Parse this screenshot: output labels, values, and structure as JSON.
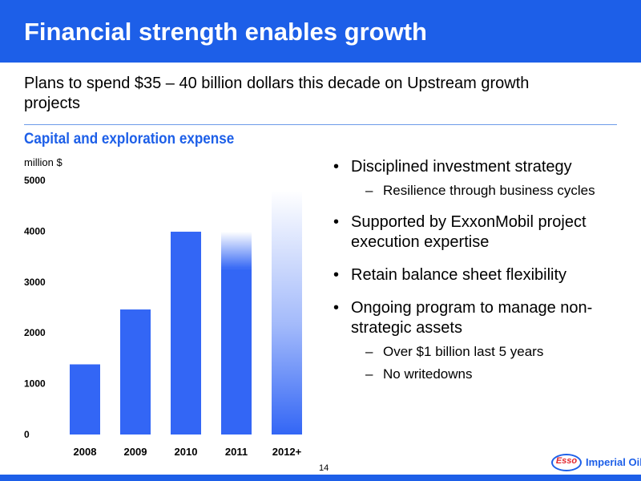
{
  "slide": {
    "title": "Financial strength enables growth",
    "subtitle": "Plans to spend $35 – 40 billion dollars this decade on Upstream growth projects",
    "page_number": "14"
  },
  "colors": {
    "accent": "#1d5fe8",
    "bar": "#3366f5",
    "logo_red": "#e3262c"
  },
  "bullets": [
    {
      "text": "Disciplined investment strategy",
      "sub": [
        "Resilience through business cycles"
      ]
    },
    {
      "text": "Supported by ExxonMobil project execution expertise",
      "sub": []
    },
    {
      "text": "Retain balance sheet flexibility",
      "sub": []
    },
    {
      "text": "Ongoing program to manage non-strategic assets",
      "sub": [
        "Over $1 billion last 5 years",
        "No writedowns"
      ]
    }
  ],
  "logo": {
    "brand": "Esso",
    "company": "Imperial Oil"
  },
  "chart_data": {
    "type": "bar",
    "title": "Capital and exploration expense",
    "ylabel": "million $",
    "categories": [
      "2008",
      "2009",
      "2010",
      "2011",
      "2012+"
    ],
    "values": [
      1380,
      2460,
      3990,
      3990,
      4800
    ],
    "solid_values": [
      1380,
      2460,
      3990,
      3250,
      0
    ],
    "ylim": [
      0,
      5000
    ],
    "yticks": [
      0,
      1000,
      2000,
      3000,
      4000,
      5000
    ],
    "grid": false
  }
}
